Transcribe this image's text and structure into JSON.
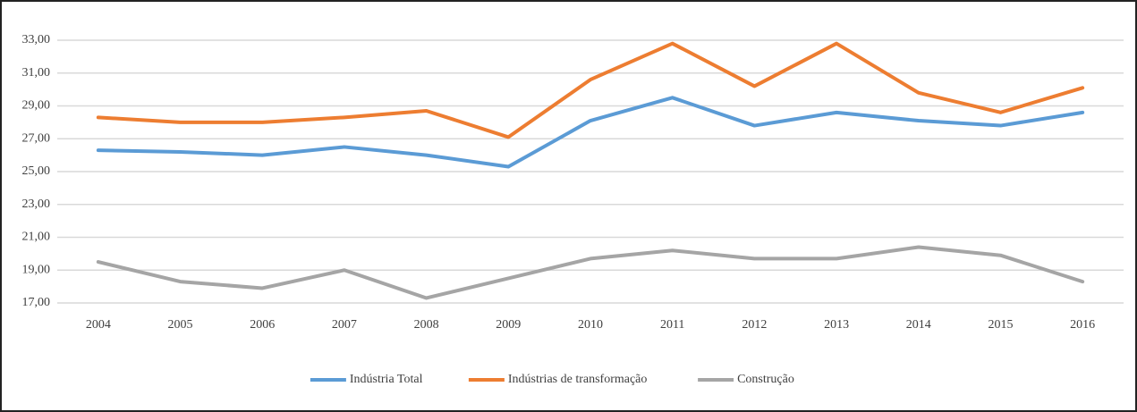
{
  "chart_data": {
    "type": "line",
    "categories": [
      "2004",
      "2005",
      "2006",
      "2007",
      "2008",
      "2009",
      "2010",
      "2011",
      "2012",
      "2013",
      "2014",
      "2015",
      "2016"
    ],
    "series": [
      {
        "name": "Indústria Total",
        "color": "#5b9bd5",
        "values": [
          26.3,
          26.2,
          26.0,
          26.5,
          26.0,
          25.3,
          28.1,
          29.5,
          27.8,
          28.6,
          28.1,
          27.8,
          28.6
        ]
      },
      {
        "name": "Indústrias de transformação",
        "color": "#ed7d31",
        "values": [
          28.3,
          28.0,
          28.0,
          28.3,
          28.7,
          27.1,
          30.6,
          32.8,
          30.2,
          32.8,
          29.8,
          28.6,
          30.1
        ]
      },
      {
        "name": "Construção",
        "color": "#a5a5a5",
        "values": [
          19.5,
          18.3,
          17.9,
          19.0,
          17.3,
          18.5,
          19.7,
          20.2,
          19.7,
          19.7,
          20.4,
          19.9,
          18.3
        ]
      }
    ],
    "ylim": [
      17,
      33
    ],
    "yticks": [
      {
        "value": 17,
        "label": "17,00"
      },
      {
        "value": 19,
        "label": "19,00"
      },
      {
        "value": 21,
        "label": "21,00"
      },
      {
        "value": 23,
        "label": "23,00"
      },
      {
        "value": 25,
        "label": "25,00"
      },
      {
        "value": 27,
        "label": "27,00"
      },
      {
        "value": 29,
        "label": "29,00"
      },
      {
        "value": 31,
        "label": "31,00"
      },
      {
        "value": 33,
        "label": "33,00"
      }
    ],
    "grid": true,
    "legend": "bottom"
  }
}
